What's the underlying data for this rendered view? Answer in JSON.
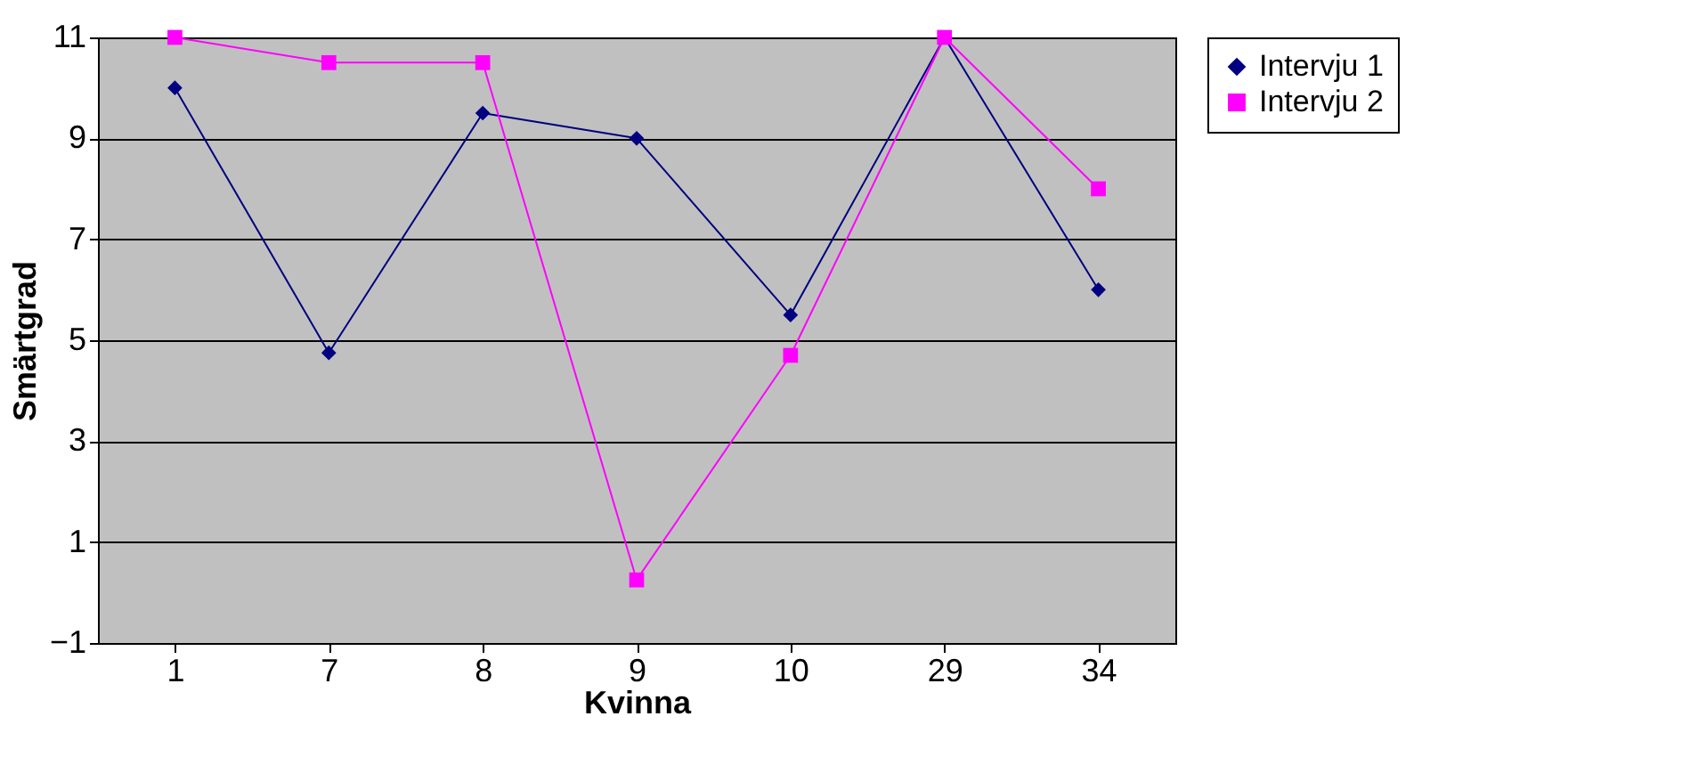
{
  "chart_data": {
    "type": "line",
    "xlabel": "Kvinna",
    "ylabel": "Smärtgrad",
    "categories": [
      "1",
      "7",
      "8",
      "9",
      "10",
      "29",
      "34"
    ],
    "series": [
      {
        "name": "Intervju 1",
        "color": "#000080",
        "marker": "diamond",
        "values": [
          10,
          4.75,
          9.5,
          9,
          5.5,
          11,
          6
        ]
      },
      {
        "name": "Intervju 2",
        "color": "#ff00ff",
        "marker": "square",
        "values": [
          11,
          10.5,
          10.5,
          0.25,
          4.7,
          11,
          8
        ]
      }
    ],
    "ylim": [
      -1,
      11
    ],
    "yticks": [
      -1,
      1,
      3,
      5,
      7,
      9,
      11
    ],
    "grid": "y",
    "legend": "right"
  }
}
